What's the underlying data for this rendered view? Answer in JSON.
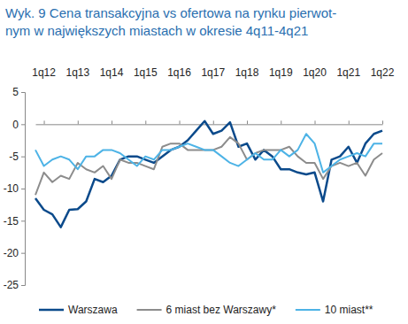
{
  "chart_data": {
    "type": "line",
    "title": [
      "Wyk. 9 Cena transakcyjna vs ofertowa na rynku pierwot-",
      "nym w największych miastach w okresie 4q11-4q21"
    ],
    "categories": [
      null,
      "1q12",
      null,
      null,
      null,
      "1q13",
      null,
      null,
      null,
      "1q14",
      null,
      null,
      null,
      "1q15",
      null,
      null,
      null,
      "1q16",
      null,
      null,
      null,
      "1q17",
      null,
      null,
      null,
      "1q18",
      null,
      null,
      null,
      "1q19",
      null,
      null,
      null,
      "1q20",
      null,
      null,
      null,
      "1q21",
      null,
      null,
      null,
      "1q22"
    ],
    "ylim": [
      -25,
      5
    ],
    "yticks": [
      -25,
      -20,
      -15,
      -10,
      -5,
      0,
      5
    ],
    "grid": false,
    "legend": "bottom",
    "series": [
      {
        "name": "Warszawa",
        "color": "#0b4a8b",
        "values": [
          -11.5,
          -13.3,
          -14,
          -16,
          -13.3,
          -13.2,
          -12,
          -8.5,
          -9,
          -8,
          -5.5,
          -5,
          -5,
          -5.5,
          -6,
          -5,
          -4,
          -3.5,
          -2.5,
          -1,
          0.5,
          -1.5,
          -1,
          0.3,
          -3.5,
          -3,
          -5.5,
          -4,
          -5,
          -7,
          -7,
          -7.5,
          -7.8,
          -7.5,
          -12,
          -5.5,
          -5,
          -3.5,
          -6,
          -3,
          -1.5,
          -1
        ]
      },
      {
        "name": "6 miast bez Warszawy*",
        "color": "#8c8c8c",
        "values": [
          -11,
          -7.5,
          -9,
          -8,
          -8.5,
          -6,
          -7,
          -7.5,
          -6.5,
          -8.5,
          -5.5,
          -6,
          -6,
          -6.5,
          -7,
          -3.5,
          -3,
          -3,
          -4,
          -4,
          -4,
          -4,
          -3.5,
          -2,
          -3,
          -5.5,
          -4.5,
          -4,
          -4,
          -4,
          -3.5,
          -5,
          -6,
          -6,
          -8.5,
          -6.5,
          -6,
          -6.5,
          -6,
          -8,
          -5.5,
          -4.5
        ]
      },
      {
        "name": "10 miast**",
        "color": "#4db3e6",
        "values": [
          -4,
          -6.5,
          -5.5,
          -5,
          -5.5,
          -7,
          -5,
          -5,
          -4,
          -4,
          -4.5,
          -5.5,
          -6.5,
          -5,
          -5.5,
          -4,
          -4,
          -3.5,
          -3,
          -3.5,
          -4,
          -4,
          -5,
          -6,
          -6.5,
          -5.5,
          -4.5,
          -5.5,
          -5.5,
          -4,
          -5,
          -4,
          -1.5,
          -3,
          -7.5,
          -6.5,
          -5.5,
          -5,
          -4.5,
          -5,
          -3,
          -3
        ]
      }
    ]
  }
}
